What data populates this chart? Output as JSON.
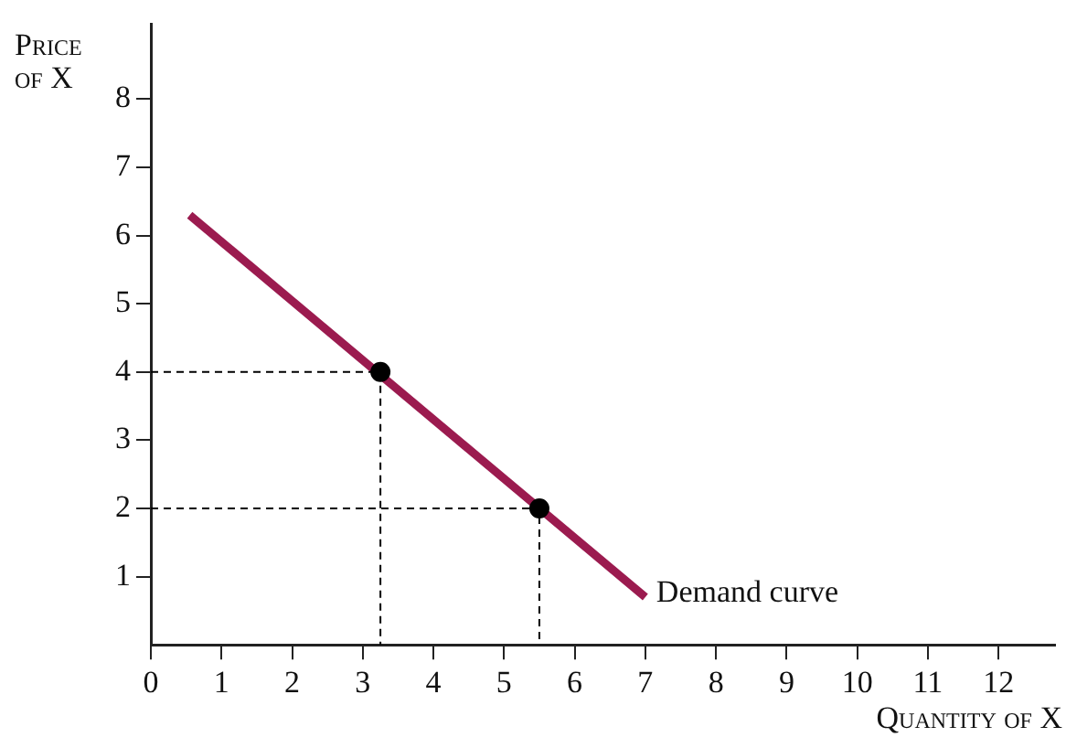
{
  "chart_data": {
    "type": "line",
    "xlabel": "Quantity of X",
    "ylabel": "Price of X",
    "xlim": [
      0,
      12.8
    ],
    "ylim": [
      0,
      9.1
    ],
    "xticks": [
      0,
      1,
      2,
      3,
      4,
      5,
      6,
      7,
      8,
      9,
      10,
      11,
      12
    ],
    "yticks": [
      1,
      2,
      3,
      4,
      5,
      6,
      7,
      8
    ],
    "grid": false,
    "legend": false,
    "series": [
      {
        "x": [
          0,
          3.25,
          3.25
        ],
        "values": [
          4,
          4,
          0
        ],
        "color": "#000000",
        "line_style": "dashed",
        "marker": "none"
      },
      {
        "x": [
          0,
          5.5,
          5.5
        ],
        "values": [
          2,
          2,
          0
        ],
        "color": "#000000",
        "line_style": "dashed",
        "marker": "none"
      },
      {
        "name": "Demand curve",
        "x": [
          0.55,
          7
        ],
        "values": [
          6.3,
          0.7
        ],
        "color": "#9b1b4f",
        "line_style": "solid",
        "marker": "none"
      },
      {
        "type": "scatter",
        "x": [
          3.25,
          5.5
        ],
        "values": [
          4,
          2
        ],
        "color": "#000000",
        "marker": "circle"
      }
    ]
  }
}
